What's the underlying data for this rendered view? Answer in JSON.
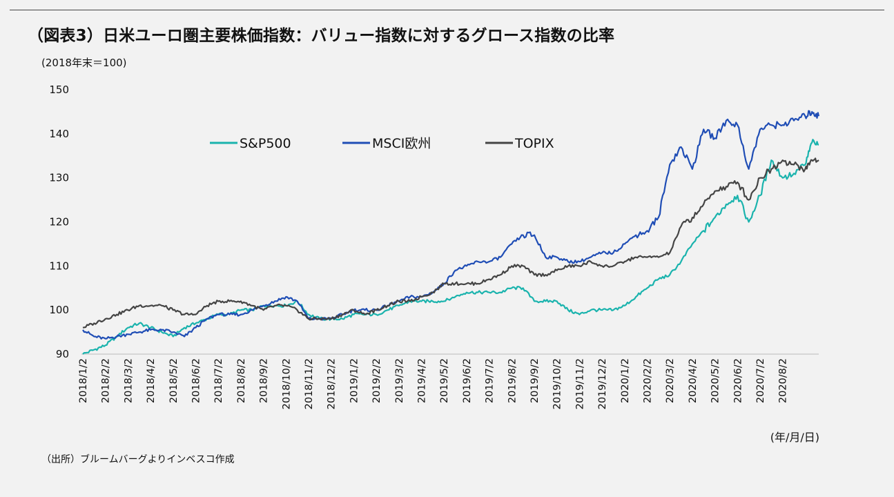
{
  "title": "（図表3）日米ユーロ圏主要株価指数：バリュー指数に対するグロース指数の比率",
  "unit_note": "(2018年末＝100)",
  "date_format_note": "(年/月/日)",
  "source_note": "（出所）ブルームバーグよりインベスコ作成",
  "colors": {
    "sp500": "#1ab3ad",
    "msci": "#1f4db5",
    "topix": "#444444"
  },
  "chart_data": {
    "type": "line",
    "title": "（図表3）日米ユーロ圏主要株価指数：バリュー指数に対するグロース指数の比率",
    "xlabel": "(年/月/日)",
    "ylabel": "(2018年末＝100)",
    "ylim": [
      90,
      150
    ],
    "yticks": [
      90,
      100,
      110,
      120,
      130,
      140,
      150
    ],
    "grid": false,
    "legend": "top-left",
    "x_tick_labels": [
      "2018/1/2",
      "2018/2/2",
      "2018/3/2",
      "2018/4/2",
      "2018/5/2",
      "2018/6/2",
      "2018/7/2",
      "2018/8/2",
      "2018/9/2",
      "2018/10/2",
      "2018/11/2",
      "2018/12/2",
      "2019/1/2",
      "2019/2/2",
      "2019/3/2",
      "2019/4/2",
      "2019/5/2",
      "2019/6/2",
      "2019/7/2",
      "2019/8/2",
      "2019/9/2",
      "2019/10/2",
      "2019/11/2",
      "2019/12/2",
      "2020/1/2",
      "2020/2/2",
      "2020/3/2",
      "2020/4/2",
      "2020/5/2",
      "2020/6/2",
      "2020/7/2",
      "2020/8/2"
    ],
    "x_end": 32.6,
    "series": [
      {
        "name": "S&P500",
        "color": "#1ab3ad",
        "points": [
          [
            0,
            90
          ],
          [
            0.5,
            91
          ],
          [
            1,
            92
          ],
          [
            1.5,
            94
          ],
          [
            2,
            96
          ],
          [
            2.5,
            97
          ],
          [
            3,
            96
          ],
          [
            3.5,
            95
          ],
          [
            4,
            94
          ],
          [
            4.5,
            96
          ],
          [
            5,
            97
          ],
          [
            5.5,
            98
          ],
          [
            6,
            99
          ],
          [
            6.5,
            99
          ],
          [
            7,
            100
          ],
          [
            7.5,
            100
          ],
          [
            8,
            101
          ],
          [
            8.5,
            101
          ],
          [
            9,
            101
          ],
          [
            9.5,
            102
          ],
          [
            10,
            99
          ],
          [
            10.5,
            98
          ],
          [
            11,
            98
          ],
          [
            11.5,
            98
          ],
          [
            12,
            99
          ],
          [
            12.5,
            99
          ],
          [
            13,
            99
          ],
          [
            13.5,
            100
          ],
          [
            14,
            101
          ],
          [
            14.5,
            102
          ],
          [
            15,
            102
          ],
          [
            15.5,
            102
          ],
          [
            16,
            102
          ],
          [
            16.5,
            103
          ],
          [
            17,
            104
          ],
          [
            17.5,
            104
          ],
          [
            18,
            104
          ],
          [
            18.5,
            104
          ],
          [
            19,
            105
          ],
          [
            19.5,
            105
          ],
          [
            20,
            102
          ],
          [
            20.5,
            102
          ],
          [
            21,
            102
          ],
          [
            21.5,
            100
          ],
          [
            22,
            99
          ],
          [
            22.5,
            100
          ],
          [
            23,
            100
          ],
          [
            23.5,
            100
          ],
          [
            24,
            101
          ],
          [
            24.5,
            103
          ],
          [
            25,
            105
          ],
          [
            25.5,
            107
          ],
          [
            26,
            108
          ],
          [
            26.5,
            111
          ],
          [
            27,
            115
          ],
          [
            27.5,
            118
          ],
          [
            28,
            121
          ],
          [
            28.5,
            124
          ],
          [
            29,
            126
          ],
          [
            29.5,
            120
          ],
          [
            30,
            126
          ],
          [
            30.5,
            134
          ],
          [
            31,
            130
          ],
          [
            31.5,
            131
          ],
          [
            32,
            133
          ],
          [
            32.3,
            138
          ],
          [
            32.6,
            137.5
          ]
        ]
      },
      {
        "name": "MSCI欧州",
        "color": "#1f4db5",
        "points": [
          [
            0,
            95.5
          ],
          [
            0.5,
            94
          ],
          [
            1,
            93.5
          ],
          [
            1.5,
            94
          ],
          [
            2,
            94.5
          ],
          [
            2.5,
            95
          ],
          [
            3,
            95.5
          ],
          [
            3.5,
            95.5
          ],
          [
            4,
            95
          ],
          [
            4.5,
            94
          ],
          [
            5,
            96
          ],
          [
            5.5,
            98
          ],
          [
            6,
            99
          ],
          [
            6.5,
            99
          ],
          [
            7,
            99
          ],
          [
            7.5,
            100
          ],
          [
            8,
            101
          ],
          [
            8.5,
            102
          ],
          [
            9,
            103
          ],
          [
            9.5,
            102
          ],
          [
            10,
            98
          ],
          [
            10.5,
            98
          ],
          [
            11,
            98
          ],
          [
            11.5,
            99
          ],
          [
            12,
            100
          ],
          [
            12.5,
            100
          ],
          [
            13,
            100
          ],
          [
            13.5,
            101
          ],
          [
            14,
            102
          ],
          [
            14.5,
            103
          ],
          [
            15,
            103
          ],
          [
            15.5,
            104
          ],
          [
            16,
            106
          ],
          [
            16.5,
            109
          ],
          [
            17,
            110
          ],
          [
            17.5,
            111
          ],
          [
            18,
            111
          ],
          [
            18.5,
            112
          ],
          [
            19,
            115
          ],
          [
            19.5,
            117
          ],
          [
            20,
            117
          ],
          [
            20.5,
            112
          ],
          [
            21,
            112
          ],
          [
            21.5,
            111
          ],
          [
            22,
            111
          ],
          [
            22.5,
            112
          ],
          [
            23,
            113
          ],
          [
            23.5,
            113
          ],
          [
            24,
            115
          ],
          [
            24.5,
            117
          ],
          [
            25,
            118
          ],
          [
            25.5,
            121
          ],
          [
            26,
            133
          ],
          [
            26.5,
            137
          ],
          [
            27,
            132
          ],
          [
            27.5,
            141
          ],
          [
            28,
            139
          ],
          [
            28.5,
            143
          ],
          [
            29,
            142
          ],
          [
            29.5,
            132
          ],
          [
            30,
            141
          ],
          [
            30.5,
            142
          ],
          [
            31,
            142
          ],
          [
            31.5,
            143
          ],
          [
            32,
            144
          ],
          [
            32.3,
            145
          ],
          [
            32.6,
            144
          ]
        ]
      },
      {
        "name": "TOPIX",
        "color": "#444444",
        "points": [
          [
            0,
            96
          ],
          [
            0.5,
            97
          ],
          [
            1,
            98
          ],
          [
            1.5,
            99
          ],
          [
            2,
            100
          ],
          [
            2.5,
            101
          ],
          [
            3,
            101
          ],
          [
            3.5,
            101
          ],
          [
            4,
            100
          ],
          [
            4.5,
            99
          ],
          [
            5,
            99
          ],
          [
            5.5,
            101
          ],
          [
            6,
            102
          ],
          [
            6.5,
            102
          ],
          [
            7,
            102
          ],
          [
            7.5,
            101
          ],
          [
            8,
            100
          ],
          [
            8.5,
            101
          ],
          [
            9,
            101
          ],
          [
            9.5,
            100
          ],
          [
            10,
            98
          ],
          [
            10.5,
            98
          ],
          [
            11,
            98
          ],
          [
            11.5,
            99
          ],
          [
            12,
            100
          ],
          [
            12.5,
            99
          ],
          [
            13,
            100
          ],
          [
            13.5,
            101
          ],
          [
            14,
            102
          ],
          [
            14.5,
            102
          ],
          [
            15,
            103
          ],
          [
            15.5,
            104
          ],
          [
            16,
            106
          ],
          [
            16.5,
            106
          ],
          [
            17,
            106
          ],
          [
            17.5,
            106
          ],
          [
            18,
            107
          ],
          [
            18.5,
            108
          ],
          [
            19,
            110
          ],
          [
            19.5,
            110
          ],
          [
            20,
            108
          ],
          [
            20.5,
            108
          ],
          [
            21,
            109
          ],
          [
            21.5,
            110
          ],
          [
            22,
            110
          ],
          [
            22.5,
            111
          ],
          [
            23,
            110
          ],
          [
            23.5,
            110
          ],
          [
            24,
            111
          ],
          [
            24.5,
            112
          ],
          [
            25,
            112
          ],
          [
            25.5,
            112
          ],
          [
            26,
            113
          ],
          [
            26.5,
            119
          ],
          [
            27,
            121
          ],
          [
            27.5,
            124
          ],
          [
            28,
            127
          ],
          [
            28.5,
            128
          ],
          [
            29,
            129
          ],
          [
            29.5,
            125
          ],
          [
            30,
            130
          ],
          [
            30.5,
            132
          ],
          [
            31,
            134
          ],
          [
            31.5,
            133
          ],
          [
            32,
            132
          ],
          [
            32.3,
            134
          ],
          [
            32.6,
            134
          ]
        ]
      }
    ]
  }
}
